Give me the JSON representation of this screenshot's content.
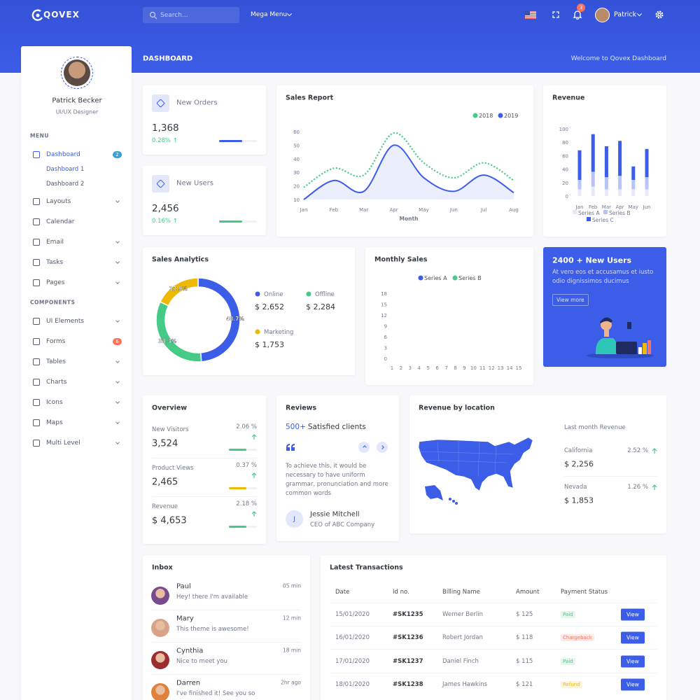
{
  "topbar": {
    "brand": "QOVEX",
    "search": "Search...",
    "mega_menu": "Mega Menu",
    "notifications": "3",
    "user": "Patrick"
  },
  "page_title": "DASHBOARD",
  "welcome": "Welcome to Qovex Dashboard",
  "profile": {
    "name": "Patrick Becker",
    "role": "UI/UX Designer"
  },
  "menu": [
    {
      "heading": "MENU",
      "items": [
        {
          "label": "Dashboard",
          "badge": "2",
          "sub": [
            "Dashboard 1",
            "Dashboard 2"
          ]
        },
        {
          "label": "Layouts",
          "expandable": true
        },
        {
          "label": "Calendar"
        },
        {
          "label": "Email",
          "expandable": true
        },
        {
          "label": "Tasks",
          "expandable": true
        },
        {
          "label": "Pages",
          "expandable": true
        }
      ]
    },
    {
      "heading": "COMPONENTS",
      "items": [
        {
          "label": "UI Elements",
          "expandable": true
        },
        {
          "label": "Forms",
          "badge": "6"
        },
        {
          "label": "Tables",
          "expandable": true
        },
        {
          "label": "Charts",
          "expandable": true
        },
        {
          "label": "Icons",
          "expandable": true
        },
        {
          "label": "Maps",
          "expandable": true
        },
        {
          "label": "Multi Level",
          "expandable": true
        }
      ]
    }
  ],
  "stats": [
    {
      "title": "New Orders",
      "value": "1,368",
      "change": "0.28% ↑"
    },
    {
      "title": "New Users",
      "value": "2,456",
      "change": "0.16% ↑"
    }
  ],
  "promo": {
    "title": "2400 + New Users",
    "text": "At vero eos et accusamus et iusto odio dignissimos ducimus",
    "button": "View more"
  },
  "overview": {
    "title": "Overview",
    "items": [
      {
        "label": "New Visitors",
        "value": "3,524",
        "change": "2.06 %"
      },
      {
        "label": "Product Views",
        "value": "2,465",
        "change": "0.37 %"
      },
      {
        "label": "Revenue",
        "value": "$ 4,653",
        "change": "2.18 %"
      }
    ]
  },
  "reviews": {
    "title": "Reviews",
    "highlight": "500+",
    "headline": "Satisfied clients",
    "quote": "To achieve this, it would be necessary to have uniform grammar, pronunciation and more common words",
    "initial": "J",
    "name": "Jessie Mitchell",
    "role": "CEO of ABC Company"
  },
  "location": {
    "title": "Revenue by location",
    "subtitle": "Last month Revenue",
    "items": [
      {
        "name": "California",
        "change": "2.52 %",
        "value": "$ 2,256"
      },
      {
        "name": "Nevada",
        "change": "1.26 %",
        "value": "$ 1,853"
      }
    ]
  },
  "inbox": {
    "title": "Inbox",
    "messages": [
      {
        "name": "Paul",
        "time": "05 min",
        "text": "Hey! there I'm available"
      },
      {
        "name": "Mary",
        "time": "12 min",
        "text": "This theme is awesome!"
      },
      {
        "name": "Cynthia",
        "time": "18 min",
        "text": "Nice to meet you"
      },
      {
        "name": "Darren",
        "time": "2hr ago",
        "text": "I've finished it! See you so"
      }
    ]
  },
  "transactions": {
    "title": "Latest Transactions",
    "columns": [
      "Date",
      "Id no.",
      "Billing Name",
      "Amount",
      "Payment Status"
    ],
    "rows": [
      [
        "15/01/2020",
        "#SK1235",
        "Werner Berlin",
        "$ 125",
        "Paid"
      ],
      [
        "16/01/2020",
        "#SK1236",
        "Robert Jordan",
        "$ 118",
        "Chargeback"
      ],
      [
        "17/01/2020",
        "#SK1237",
        "Daniel Finch",
        "$ 115",
        "Paid"
      ],
      [
        "18/01/2020",
        "#SK1238",
        "James Hawkins",
        "$ 121",
        "Refund"
      ]
    ],
    "action": "View",
    "status_colors": {
      "Paid": "#45cb85",
      "Chargeback": "#ff715b",
      "Refund": "#eeb902"
    }
  },
  "chart_data": [
    {
      "type": "line",
      "title": "Sales Report",
      "x_label": "Month",
      "categories": [
        "Jan",
        "Feb",
        "Mar",
        "Apr",
        "May",
        "Jun",
        "Jul",
        "Aug"
      ],
      "series": [
        {
          "name": "2018",
          "color": "#45cb85",
          "values": [
            19,
            33,
            28,
            59,
            37,
            26,
            37,
            24
          ]
        },
        {
          "name": "2019",
          "color": "#3b5de7",
          "values": [
            10,
            24,
            16,
            50,
            26,
            16,
            28,
            15
          ]
        }
      ],
      "ylim": [
        10,
        60
      ],
      "yticks": [
        10,
        20,
        30,
        40,
        50,
        60
      ]
    },
    {
      "type": "stacked_bar",
      "title": "Revenue",
      "categories": [
        "Jan",
        "Feb",
        "Mar",
        "Apr",
        "May",
        "Jun"
      ],
      "series": [
        {
          "name": "Series A",
          "color": "#e6e9fb",
          "values": [
            10,
            14,
            10,
            10,
            10,
            10
          ]
        },
        {
          "name": "Series B",
          "color": "#b9c4f6",
          "values": [
            14,
            22,
            18,
            20,
            14,
            18
          ]
        },
        {
          "name": "Series C",
          "color": "#3b5de7",
          "values": [
            44,
            56,
            46,
            52,
            20,
            42
          ]
        }
      ],
      "ylim": [
        0,
        100
      ],
      "yticks": [
        0,
        20,
        40,
        60,
        80,
        100
      ]
    },
    {
      "type": "donut",
      "title": "Sales Analytics",
      "categories": [
        "Online",
        "Offline",
        "Marketing"
      ],
      "values": [
        48.7,
        33.3,
        17.9
      ],
      "value_labels": [
        "48.7%",
        "33.3%",
        "17.9%"
      ],
      "amounts": [
        "$ 2,652",
        "$ 2,284",
        "$ 1,753"
      ],
      "colors": [
        "#3b5de7",
        "#45cb85",
        "#eeb902"
      ]
    },
    {
      "type": "scatter",
      "title": "Monthly Sales",
      "series": [
        {
          "name": "Series A",
          "color": "#3b5de7"
        },
        {
          "name": "Series B",
          "color": "#45cb85"
        }
      ],
      "xlim": [
        1,
        15
      ],
      "xticks": [
        1,
        2,
        3,
        4,
        5,
        6,
        7,
        8,
        9,
        10,
        11,
        12,
        13,
        14,
        15
      ],
      "ylim": [
        0,
        18
      ],
      "yticks": [
        0,
        3,
        6,
        9,
        12,
        15,
        18
      ]
    }
  ]
}
